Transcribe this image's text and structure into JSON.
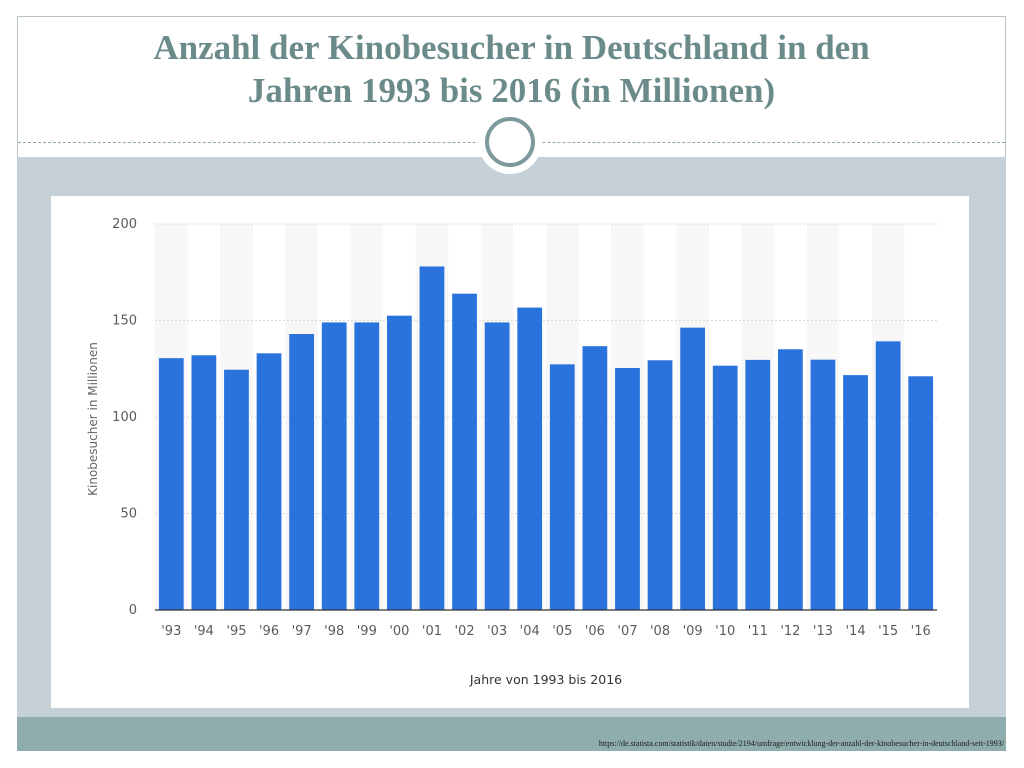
{
  "slide": {
    "title": "Anzahl der Kinobesucher in Deutschland in den Jahren 1993 bis 2016 (in Millionen)",
    "source_url": "https://de.statista.com/statistik/daten/studie/2194/umfrage/entwicklung-der-anzahl-der-kinobesucher-in-deutschland-seit-1993/"
  },
  "colors": {
    "bar": "#2a72dc",
    "title": "#6b8a8a",
    "panel": "#c5d1d6",
    "footer": "#8fadad",
    "stripe": "#f7f7f7"
  },
  "chart_data": {
    "type": "bar",
    "title": "",
    "xlabel": "Jahre von 1993 bis 2016",
    "ylabel": "Kinobesucher in Millionen",
    "ylim": [
      0,
      200
    ],
    "yticks": [
      0,
      50,
      100,
      150,
      200
    ],
    "grid": true,
    "categories": [
      "'93",
      "'94",
      "'95",
      "'96",
      "'97",
      "'98",
      "'99",
      "'00",
      "'01",
      "'02",
      "'03",
      "'04",
      "'05",
      "'06",
      "'07",
      "'08",
      "'09",
      "'10",
      "'11",
      "'12",
      "'13",
      "'14",
      "'15",
      "'16"
    ],
    "values": [
      130.5,
      132.0,
      124.5,
      133.0,
      143.0,
      149.0,
      149.0,
      152.5,
      178.0,
      163.9,
      149.0,
      156.7,
      127.3,
      136.7,
      125.4,
      129.4,
      146.3,
      126.6,
      129.6,
      135.1,
      129.7,
      121.7,
      139.2,
      121.1
    ]
  }
}
